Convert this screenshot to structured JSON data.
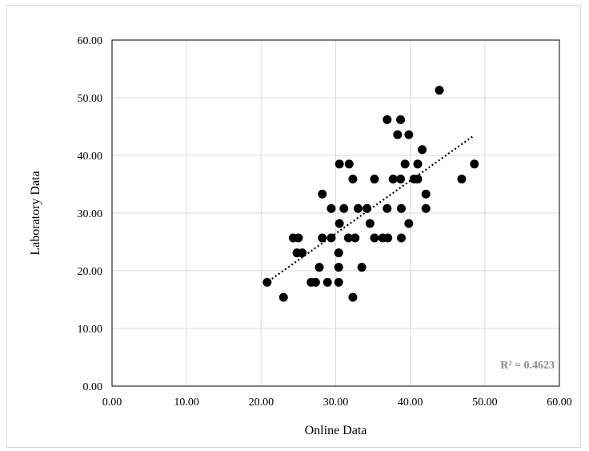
{
  "chart_data": {
    "type": "scatter",
    "xlabel": "Online Data",
    "ylabel": "Laboratory Data",
    "xlim": [
      0,
      60
    ],
    "ylim": [
      0,
      60
    ],
    "x_ticks": [
      "0.00",
      "10.00",
      "20.00",
      "30.00",
      "40.00",
      "50.00",
      "60.00"
    ],
    "y_ticks": [
      "0.00",
      "10.00",
      "20.00",
      "30.00",
      "40.00",
      "50.00",
      "60.00"
    ],
    "grid": true,
    "r_squared_label": "R² = 0.4623",
    "trendline": {
      "style": "dotted",
      "x_start": 21.0,
      "y_start": 18.2,
      "x_end": 48.5,
      "y_end": 43.4
    },
    "colors": {
      "points": "#000000",
      "trendline": "#000000",
      "grid": "#d9d9d9",
      "r2_text": "#8c8c8c"
    },
    "points": [
      [
        20.8,
        18.0
      ],
      [
        23.0,
        15.4
      ],
      [
        24.3,
        25.7
      ],
      [
        24.8,
        23.1
      ],
      [
        25.0,
        25.7
      ],
      [
        25.5,
        23.1
      ],
      [
        26.7,
        18.0
      ],
      [
        27.3,
        18.0
      ],
      [
        27.8,
        20.6
      ],
      [
        28.2,
        25.7
      ],
      [
        28.2,
        33.3
      ],
      [
        28.9,
        18.0
      ],
      [
        29.4,
        30.8
      ],
      [
        29.4,
        25.7
      ],
      [
        30.4,
        18.0
      ],
      [
        30.4,
        20.6
      ],
      [
        30.4,
        23.1
      ],
      [
        30.5,
        28.2
      ],
      [
        30.5,
        38.5
      ],
      [
        31.1,
        30.8
      ],
      [
        31.7,
        25.7
      ],
      [
        31.8,
        38.5
      ],
      [
        32.3,
        35.9
      ],
      [
        32.3,
        15.4
      ],
      [
        32.6,
        25.7
      ],
      [
        33.0,
        30.8
      ],
      [
        33.5,
        20.6
      ],
      [
        34.2,
        30.8
      ],
      [
        34.6,
        28.2
      ],
      [
        35.2,
        25.7
      ],
      [
        35.2,
        35.9
      ],
      [
        36.3,
        25.7
      ],
      [
        37.0,
        25.7
      ],
      [
        36.9,
        46.2
      ],
      [
        36.9,
        30.8
      ],
      [
        37.7,
        35.9
      ],
      [
        38.3,
        43.6
      ],
      [
        38.7,
        46.2
      ],
      [
        38.7,
        35.9
      ],
      [
        38.8,
        30.8
      ],
      [
        38.8,
        25.7
      ],
      [
        39.3,
        38.5
      ],
      [
        39.8,
        43.6
      ],
      [
        39.8,
        28.2
      ],
      [
        40.5,
        35.9
      ],
      [
        41.0,
        35.9
      ],
      [
        41.0,
        38.5
      ],
      [
        41.6,
        41.0
      ],
      [
        42.1,
        33.3
      ],
      [
        42.1,
        30.8
      ],
      [
        43.9,
        51.3
      ],
      [
        46.9,
        35.9
      ],
      [
        48.6,
        38.5
      ]
    ]
  }
}
